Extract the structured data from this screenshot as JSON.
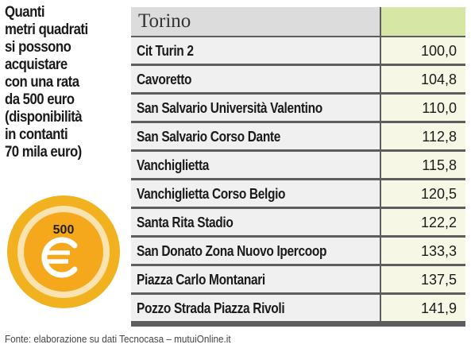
{
  "headline": [
    "Quanti",
    "metri quadrati",
    "si possono",
    "acquistare",
    "con una rata",
    "da 500 euro",
    "(disponibilità",
    "in contanti",
    "70 mila euro)"
  ],
  "coin": {
    "value": "500",
    "symbol": "€",
    "icon": "euro-coin-icon",
    "colors": {
      "outer": "#f2b21f",
      "mid": "#fbe3b0",
      "inner": "#f6a81c",
      "symbol": "#ffffff"
    }
  },
  "table": {
    "title": "Torino",
    "colors": {
      "header_name": "#dcdcdc",
      "header_value": "#d6e6a4",
      "row_name": "#f0f0f0",
      "row_value": "#f6f7e5",
      "border": "#5d5d5d"
    },
    "rows": [
      {
        "name": "Cit Turin 2",
        "value": "100,0"
      },
      {
        "name": "Cavoretto",
        "value": "104,8"
      },
      {
        "name": "San Salvario Università Valentino",
        "value": "110,0"
      },
      {
        "name": "San Salvario Corso Dante",
        "value": "112,8"
      },
      {
        "name": "Vanchiglietta",
        "value": "115,8"
      },
      {
        "name": "Vanchiglietta Corso Belgio",
        "value": "120,5"
      },
      {
        "name": "Santa Rita Stadio",
        "value": "122,2"
      },
      {
        "name": "San Donato Zona Nuovo Ipercoop",
        "value": "133,3"
      },
      {
        "name": "Piazza Carlo Montanari",
        "value": "137,5"
      },
      {
        "name": "Pozzo Strada Piazza Rivoli",
        "value": "141,9"
      }
    ]
  },
  "source": "Fonte: elaborazione su dati Tecnocasa – mutuiOnline.it"
}
